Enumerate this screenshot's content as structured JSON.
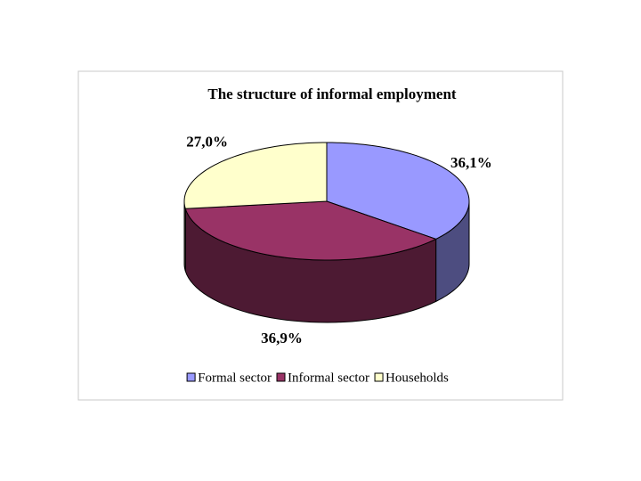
{
  "chart_data": {
    "type": "pie3d",
    "title": "The structure of informal employment",
    "categories": [
      "Formal sector",
      "Informal sector",
      "Households"
    ],
    "values": [
      36.1,
      36.9,
      27.0
    ],
    "value_labels": [
      "36,1%",
      "36,9%",
      "27,0%"
    ],
    "colors": [
      "#9999ff",
      "#993366",
      "#ffffcc"
    ],
    "legend": "bottom"
  }
}
